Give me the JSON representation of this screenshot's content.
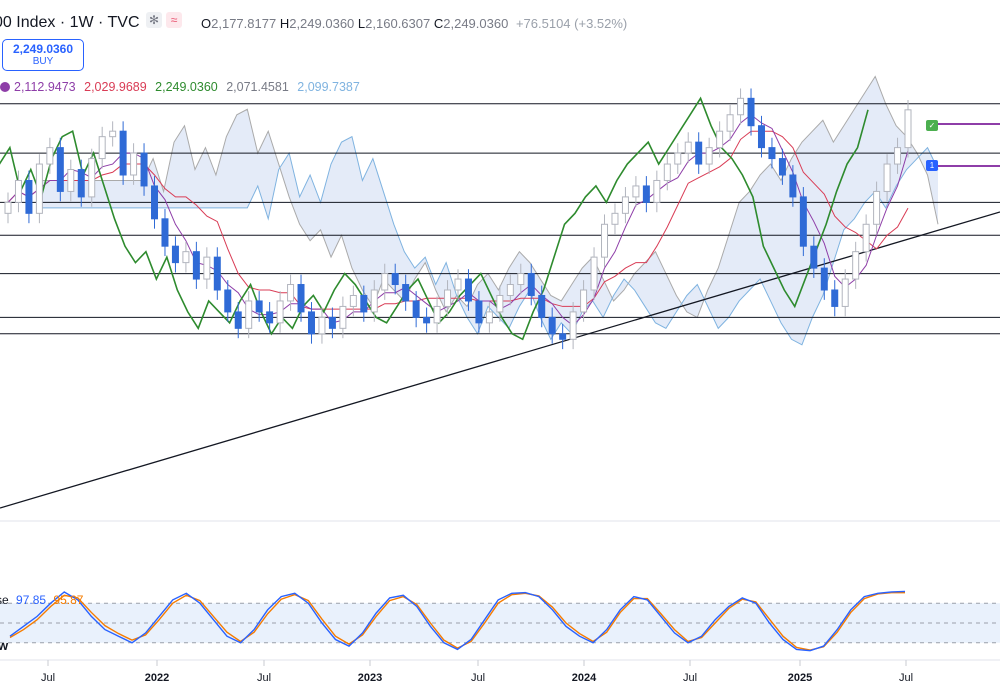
{
  "header": {
    "symbol": "00 Index · 1W · TVC",
    "open_k": "O",
    "open": "2,177.8177",
    "high_k": "H",
    "high": "2,249.0360",
    "low_k": "L",
    "low": "2,160.6307",
    "close_k": "C",
    "close": "2,249.0360",
    "change": "+76.5104 (+3.52%)"
  },
  "buy": {
    "price": "2,249.0360",
    "label": "BUY"
  },
  "indicator": {
    "values": [
      "2,112.9473",
      "2,029.9689",
      "2,249.0360",
      "2,071.4581",
      "2,099.7387"
    ],
    "colors": [
      "#8e3ea8",
      "#d93c55",
      "#2e8b2e",
      "#787b86",
      "#7fb3e0"
    ]
  },
  "stochastic": {
    "name": "se",
    "k": "97.85",
    "d": "95.87",
    "k_color": "#2962ff",
    "d_color": "#f57c00",
    "tag": "w"
  },
  "flags": {
    "check": "✓",
    "one": "1"
  },
  "colors": {
    "up": "#e0e3eb",
    "down": "#2f6ad6",
    "cloud": "#d9e3f5",
    "cloud_gray": "#e6e6e6"
  },
  "chart_data": {
    "type": "candlestick",
    "x_ticks": [
      "Jul",
      "2022",
      "Jul",
      "2023",
      "Jul",
      "2024",
      "Jul",
      "2025",
      "Jul"
    ],
    "bold_ticks": [
      "2022",
      "2023",
      "2024",
      "2025"
    ],
    "horizontal_levels": [
      2260,
      2170,
      2080,
      2020,
      1950,
      1870,
      1840
    ],
    "ylim": [
      1500,
      2340
    ],
    "close_series": [
      2080,
      2120,
      2060,
      2150,
      2180,
      2100,
      2140,
      2090,
      2160,
      2200,
      2210,
      2130,
      2170,
      2110,
      2050,
      2000,
      1970,
      1990,
      1940,
      1980,
      1920,
      1880,
      1850,
      1900,
      1880,
      1860,
      1900,
      1930,
      1880,
      1840,
      1870,
      1850,
      1890,
      1910,
      1880,
      1920,
      1950,
      1930,
      1900,
      1870,
      1860,
      1890,
      1920,
      1940,
      1900,
      1860,
      1880,
      1910,
      1930,
      1950,
      1910,
      1870,
      1840,
      1830,
      1880,
      1920,
      1980,
      2040,
      2060,
      2090,
      2110,
      2080,
      2120,
      2150,
      2170,
      2190,
      2150,
      2180,
      2210,
      2240,
      2270,
      2220,
      2180,
      2160,
      2130,
      2090,
      2000,
      1960,
      1920,
      1890,
      1940,
      1990,
      2040,
      2100,
      2150,
      2180,
      2249
    ],
    "stoch_k": [
      30,
      45,
      60,
      80,
      97,
      85,
      60,
      40,
      30,
      20,
      35,
      60,
      85,
      95,
      80,
      55,
      30,
      20,
      40,
      70,
      90,
      95,
      80,
      50,
      25,
      15,
      35,
      65,
      88,
      92,
      75,
      45,
      20,
      10,
      25,
      55,
      85,
      95,
      96,
      90,
      70,
      45,
      30,
      20,
      40,
      70,
      90,
      85,
      60,
      35,
      20,
      30,
      55,
      75,
      88,
      80,
      50,
      25,
      10,
      8,
      15,
      40,
      70,
      90,
      95,
      97,
      97.85
    ],
    "stoch_d": [
      28,
      40,
      55,
      75,
      92,
      88,
      66,
      46,
      34,
      24,
      32,
      55,
      80,
      92,
      84,
      60,
      36,
      22,
      36,
      64,
      86,
      93,
      84,
      56,
      30,
      18,
      32,
      60,
      84,
      90,
      78,
      50,
      24,
      12,
      22,
      50,
      80,
      93,
      95,
      91,
      74,
      50,
      34,
      22,
      36,
      66,
      87,
      87,
      64,
      40,
      22,
      28,
      50,
      72,
      86,
      82,
      56,
      30,
      13,
      9,
      14,
      36,
      66,
      87,
      94,
      96,
      95.87
    ]
  }
}
